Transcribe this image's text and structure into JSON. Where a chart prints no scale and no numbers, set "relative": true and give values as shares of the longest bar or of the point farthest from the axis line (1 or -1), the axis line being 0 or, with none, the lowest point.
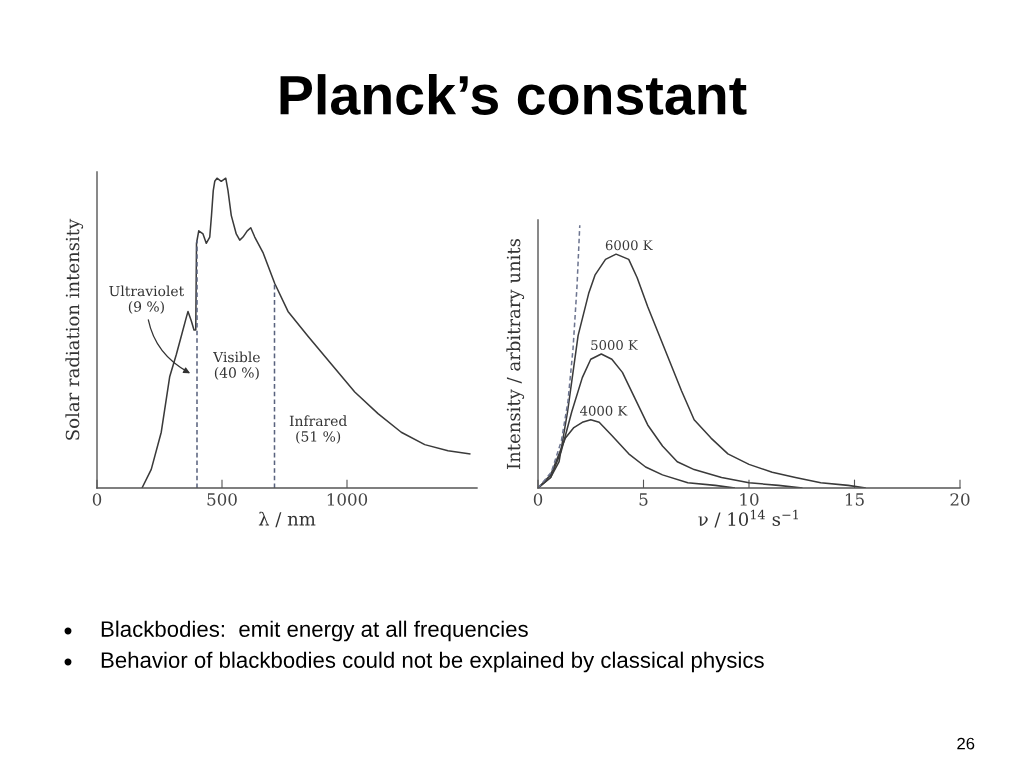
{
  "chart_data": [
    {
      "type": "other",
      "title": "Planck’s constant"
    },
    {
      "type": "line",
      "xlabel": "λ / nm",
      "ylabel": "Solar radiation intensity",
      "relative": true,
      "xlim": [
        0,
        1520
      ],
      "xticks": [
        0,
        500,
        1000
      ],
      "x": [
        180,
        217,
        257,
        291,
        317,
        337,
        357,
        364,
        377,
        388,
        395,
        398,
        407,
        424,
        437,
        451,
        458,
        465,
        471,
        480,
        497,
        515,
        524,
        537,
        557,
        571,
        584,
        601,
        615,
        631,
        664,
        711,
        764,
        844,
        937,
        1031,
        1124,
        1217,
        1311,
        1404,
        1491
      ],
      "series": [
        {
          "color": "#3a3a3a",
          "values": [
            0,
            0.06,
            0.18,
            0.36,
            0.43,
            0.49,
            0.55,
            0.57,
            0.54,
            0.51,
            0.51,
            0.79,
            0.83,
            0.82,
            0.79,
            0.81,
            0.88,
            0.96,
            0.99,
            1.0,
            0.99,
            1.0,
            0.96,
            0.88,
            0.82,
            0.8,
            0.81,
            0.83,
            0.84,
            0.81,
            0.76,
            0.66,
            0.57,
            0.49,
            0.4,
            0.31,
            0.24,
            0.18,
            0.14,
            0.12,
            0.11
          ]
        }
      ],
      "ref_lines": [
        {
          "axis": "x",
          "value": 400,
          "color": "#59627e",
          "line_style": "dashed"
        },
        {
          "axis": "x",
          "value": 710,
          "color": "#59627e",
          "line_style": "dashed"
        }
      ],
      "annotations": [
        "Ultraviolet\n(9 %)",
        "Visible\n(40 %)",
        "Infrared\n(51 %)"
      ]
    },
    {
      "type": "line",
      "xlabel": "ν / 10$^{14}$ s$^{−1}$",
      "ylabel": "Intensity / arbitrary units",
      "relative": true,
      "xlim": [
        0,
        20
      ],
      "xticks": [
        0,
        5,
        10,
        15,
        20
      ],
      "series": [
        {
          "name": "6000 K",
          "color": "#3a3a3a",
          "x": [
            0,
            0.6,
            1.0,
            1.4,
            1.9,
            2.4,
            2.7,
            3.2,
            3.7,
            4.3,
            4.7,
            5.2,
            5.7,
            6.2,
            6.8,
            7.4,
            8.2,
            9.0,
            10.0,
            11.1,
            12.2,
            13.4,
            14.7,
            15.5
          ],
          "values": [
            0,
            0.04,
            0.1,
            0.29,
            0.58,
            0.74,
            0.81,
            0.87,
            0.89,
            0.87,
            0.8,
            0.69,
            0.59,
            0.49,
            0.37,
            0.26,
            0.19,
            0.13,
            0.09,
            0.06,
            0.04,
            0.02,
            0.01,
            0
          ]
        },
        {
          "name": "5000 K",
          "color": "#3a3a3a",
          "x": [
            0,
            0.6,
            1.1,
            1.6,
            2.1,
            2.5,
            3.0,
            3.5,
            4.0,
            4.6,
            5.2,
            5.9,
            6.6,
            7.4,
            8.7,
            10.0,
            11.4,
            12.5
          ],
          "values": [
            0,
            0.04,
            0.14,
            0.29,
            0.42,
            0.49,
            0.51,
            0.49,
            0.44,
            0.34,
            0.24,
            0.16,
            0.1,
            0.07,
            0.04,
            0.02,
            0.01,
            0
          ]
        },
        {
          "name": "4000 K",
          "color": "#3a3a3a",
          "x": [
            0,
            0.6,
            1.3,
            1.7,
            2.1,
            2.5,
            2.9,
            3.5,
            4.3,
            5.1,
            5.9,
            7.1,
            8.4,
            9.3
          ],
          "values": [
            0,
            0.05,
            0.19,
            0.23,
            0.25,
            0.26,
            0.25,
            0.2,
            0.13,
            0.08,
            0.05,
            0.02,
            0.01,
            0
          ]
        },
        {
          "color": "#6d7590",
          "line_style": "dashed",
          "x": [
            0,
            0.63,
            1.11,
            1.42,
            1.66,
            1.85,
            1.98
          ],
          "values": [
            0,
            0.06,
            0.18,
            0.33,
            0.53,
            0.77,
            1.0
          ]
        }
      ]
    },
    {
      "type": "other",
      "annotations": [
        "Blackbodies:  emit energy at all frequencies",
        "Behavior of blackbodies could not be explained by classical physics"
      ]
    },
    {
      "type": "other",
      "annotations": [
        "26"
      ]
    }
  ]
}
